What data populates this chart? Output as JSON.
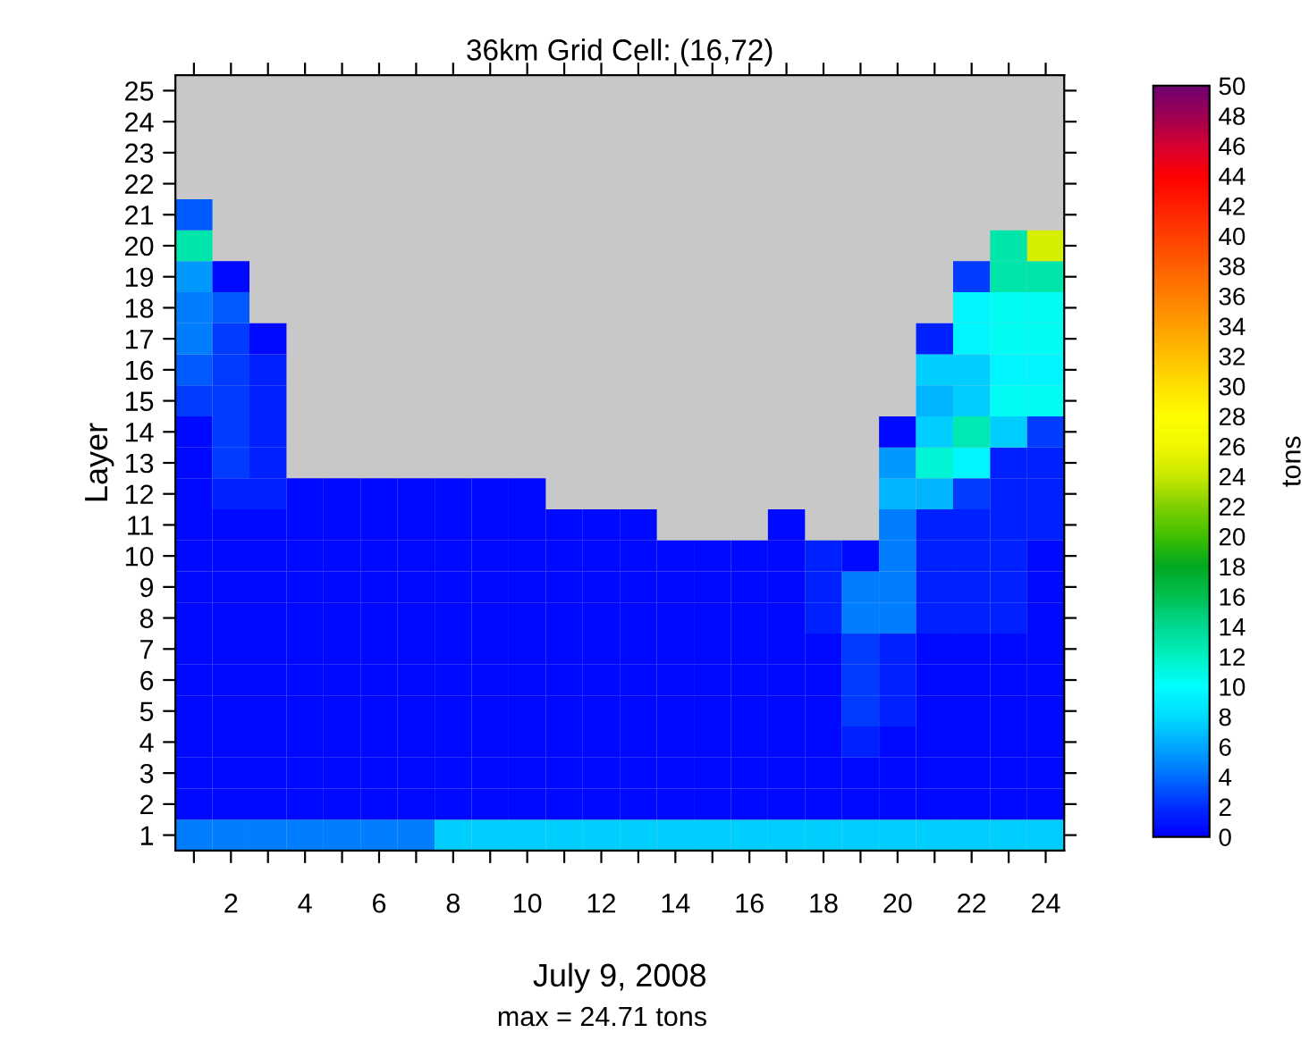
{
  "chart_data": {
    "type": "heatmap",
    "title": "36km Grid Cell: (16,72)",
    "ylabel": "Layer",
    "xlabel": "July 9, 2008",
    "clabel": "tons",
    "annotations": [
      "max = 24.71 tons"
    ],
    "categories": [
      null,
      "2",
      null,
      "4",
      null,
      "6",
      null,
      "8",
      null,
      "10",
      null,
      "12",
      null,
      "14",
      null,
      "16",
      null,
      "18",
      null,
      "20",
      null,
      "22",
      null,
      "24"
    ],
    "y_categories": [
      "25",
      "24",
      "23",
      "22",
      "21",
      "20",
      "19",
      "18",
      "17",
      "16",
      "15",
      "14",
      "13",
      "12",
      "11",
      "10",
      "9",
      "8",
      "7",
      "6",
      "5",
      "4",
      "3",
      "2",
      "1"
    ],
    "cells": [
      [
        null,
        null,
        null,
        null,
        null,
        null,
        null,
        null,
        null,
        null,
        null,
        null,
        null,
        null,
        null,
        null,
        null,
        null,
        null,
        null,
        null,
        null,
        null,
        null
      ],
      [
        null,
        null,
        null,
        null,
        null,
        null,
        null,
        null,
        null,
        null,
        null,
        null,
        null,
        null,
        null,
        null,
        null,
        null,
        null,
        null,
        null,
        null,
        null,
        null
      ],
      [
        null,
        null,
        null,
        null,
        null,
        null,
        null,
        null,
        null,
        null,
        null,
        null,
        null,
        null,
        null,
        null,
        null,
        null,
        null,
        null,
        null,
        null,
        null,
        null
      ],
      [
        null,
        null,
        null,
        null,
        null,
        null,
        null,
        null,
        null,
        null,
        null,
        null,
        null,
        null,
        null,
        null,
        null,
        null,
        null,
        null,
        null,
        null,
        null,
        null
      ],
      [
        3.5,
        null,
        null,
        null,
        null,
        null,
        null,
        null,
        null,
        null,
        null,
        null,
        null,
        null,
        null,
        null,
        null,
        null,
        null,
        null,
        null,
        null,
        null,
        null
      ],
      [
        13,
        null,
        null,
        null,
        null,
        null,
        null,
        null,
        null,
        null,
        null,
        null,
        null,
        null,
        null,
        null,
        null,
        null,
        null,
        null,
        null,
        null,
        13,
        24.71
      ],
      [
        5.5,
        0.5,
        null,
        null,
        null,
        null,
        null,
        null,
        null,
        null,
        null,
        null,
        null,
        null,
        null,
        null,
        null,
        null,
        null,
        null,
        null,
        2.5,
        13,
        13
      ],
      [
        4.5,
        3.5,
        null,
        null,
        null,
        null,
        null,
        null,
        null,
        null,
        null,
        null,
        null,
        null,
        null,
        null,
        null,
        null,
        null,
        null,
        null,
        9.5,
        10.5,
        10.5
      ],
      [
        4.5,
        2.5,
        0.5,
        null,
        null,
        null,
        null,
        null,
        null,
        null,
        null,
        null,
        null,
        null,
        null,
        null,
        null,
        null,
        null,
        null,
        1.5,
        9.5,
        10.5,
        10.5
      ],
      [
        3.5,
        2.5,
        1.5,
        null,
        null,
        null,
        null,
        null,
        null,
        null,
        null,
        null,
        null,
        null,
        null,
        null,
        null,
        null,
        null,
        null,
        7.5,
        7.5,
        9.5,
        9.5
      ],
      [
        2.5,
        2.5,
        1.5,
        null,
        null,
        null,
        null,
        null,
        null,
        null,
        null,
        null,
        null,
        null,
        null,
        null,
        null,
        null,
        null,
        null,
        6.5,
        7.5,
        10.5,
        10.5
      ],
      [
        0.5,
        2.5,
        1.5,
        null,
        null,
        null,
        null,
        null,
        null,
        null,
        null,
        null,
        null,
        null,
        null,
        null,
        null,
        null,
        null,
        0.5,
        7.5,
        12.5,
        7.5,
        2.5
      ],
      [
        0.5,
        2.5,
        1.5,
        null,
        null,
        null,
        null,
        null,
        null,
        null,
        null,
        null,
        null,
        null,
        null,
        null,
        null,
        null,
        null,
        5.5,
        11.5,
        9.5,
        1.5,
        1.5
      ],
      [
        0.5,
        1.5,
        1.5,
        0.5,
        0.5,
        0.5,
        0.5,
        0.5,
        0.5,
        0.5,
        null,
        null,
        null,
        null,
        null,
        null,
        null,
        null,
        null,
        6.5,
        6.5,
        2.5,
        1.5,
        1.5
      ],
      [
        0.5,
        0.5,
        0.5,
        0.5,
        0.5,
        0.5,
        0.5,
        0.5,
        0.5,
        0.5,
        0.5,
        0.5,
        0.5,
        null,
        null,
        null,
        0.5,
        null,
        null,
        4.5,
        1.5,
        1.5,
        1.5,
        1.5
      ],
      [
        0.5,
        0.5,
        0.5,
        0.5,
        0.5,
        0.5,
        0.5,
        0.5,
        0.5,
        0.5,
        0.5,
        0.5,
        0.5,
        0.5,
        0.5,
        0.5,
        0.5,
        1.5,
        0.5,
        4.5,
        1.5,
        1.5,
        1.5,
        0.5
      ],
      [
        0.5,
        0.5,
        0.5,
        0.5,
        0.5,
        0.5,
        0.5,
        0.5,
        0.5,
        0.5,
        0.5,
        0.5,
        0.5,
        0.5,
        0.5,
        0.5,
        0.5,
        1.5,
        4.5,
        4.5,
        1.5,
        1.5,
        1.5,
        0.5
      ],
      [
        0.5,
        0.5,
        0.5,
        0.5,
        0.5,
        0.5,
        0.5,
        0.5,
        0.5,
        0.5,
        0.5,
        0.5,
        0.5,
        0.5,
        0.5,
        0.5,
        0.5,
        1.5,
        4.5,
        4.5,
        1.5,
        1.5,
        1.5,
        0.5
      ],
      [
        0.5,
        0.5,
        0.5,
        0.5,
        0.5,
        0.5,
        0.5,
        0.5,
        0.5,
        0.5,
        0.5,
        0.5,
        0.5,
        0.5,
        0.5,
        0.5,
        0.5,
        0.5,
        2.5,
        1.5,
        0.5,
        0.5,
        0.5,
        0.5
      ],
      [
        0.5,
        0.5,
        0.5,
        0.5,
        0.5,
        0.5,
        0.5,
        0.5,
        0.5,
        0.5,
        0.5,
        0.5,
        0.5,
        0.5,
        0.5,
        0.5,
        0.5,
        0.5,
        2.5,
        1.5,
        0.5,
        0.5,
        0.5,
        0.5
      ],
      [
        0.5,
        0.5,
        0.5,
        0.5,
        0.5,
        0.5,
        0.5,
        0.5,
        0.5,
        0.5,
        0.5,
        0.5,
        0.5,
        0.5,
        0.5,
        0.5,
        0.5,
        0.5,
        2.5,
        1.5,
        0.5,
        0.5,
        0.5,
        0.5
      ],
      [
        0.5,
        0.5,
        0.5,
        0.5,
        0.5,
        0.5,
        0.5,
        0.5,
        0.5,
        0.5,
        0.5,
        0.5,
        0.5,
        0.5,
        0.5,
        0.5,
        0.5,
        0.5,
        1.5,
        0.5,
        0.5,
        0.5,
        0.5,
        0.5
      ],
      [
        0.5,
        0.5,
        0.5,
        0.5,
        0.5,
        0.5,
        0.5,
        0.5,
        0.5,
        0.5,
        0.5,
        0.5,
        0.5,
        0.5,
        0.5,
        0.5,
        0.5,
        0.5,
        0.5,
        0.5,
        0.5,
        0.5,
        0.5,
        0.5
      ],
      [
        0.5,
        0.5,
        0.5,
        0.5,
        0.5,
        0.5,
        0.5,
        0.5,
        0.5,
        0.5,
        0.5,
        0.5,
        0.5,
        0.5,
        0.5,
        0.5,
        0.5,
        0.5,
        0.5,
        0.5,
        0.5,
        0.5,
        0.5,
        0.5
      ],
      [
        4.5,
        4.5,
        4.5,
        4.5,
        4.5,
        4.5,
        4.5,
        7.5,
        7.5,
        7.5,
        7.5,
        7.5,
        7.5,
        7.5,
        7.5,
        7.5,
        7.5,
        7.5,
        7.5,
        7.5,
        7.5,
        7.5,
        7.5,
        7.5
      ]
    ],
    "clim": [
      0,
      50
    ],
    "cticks": [
      0,
      2,
      4,
      6,
      8,
      10,
      12,
      14,
      16,
      18,
      20,
      22,
      24,
      26,
      28,
      30,
      32,
      34,
      36,
      38,
      40,
      42,
      44,
      46,
      48,
      50
    ]
  }
}
